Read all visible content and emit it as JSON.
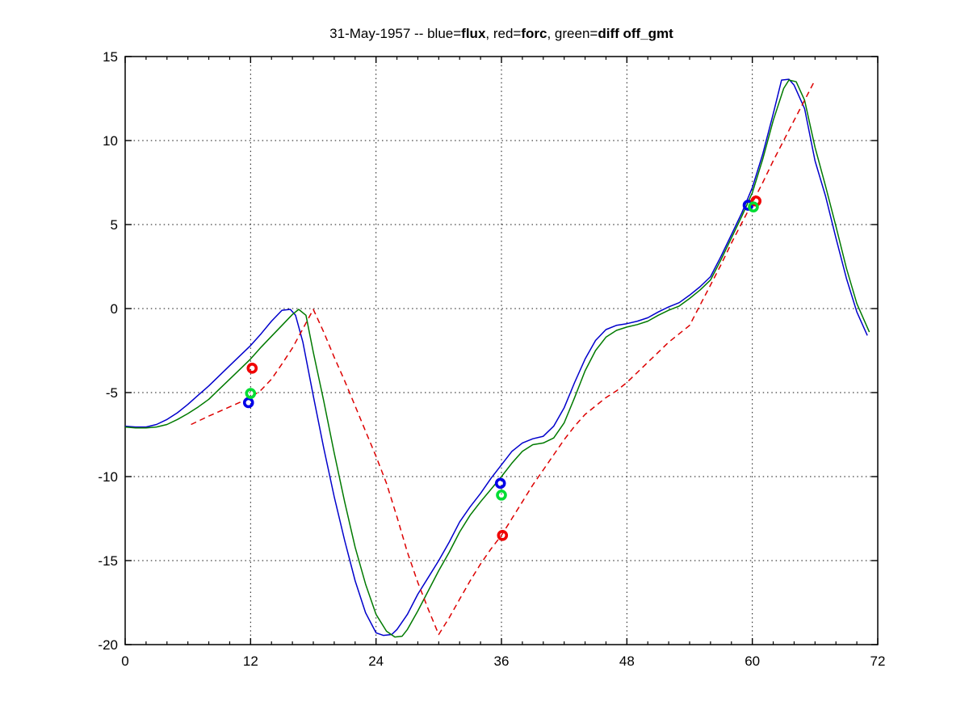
{
  "chart_data": {
    "type": "line",
    "title_segments": [
      {
        "text": "31-May-1957 -- blue=",
        "bold": false
      },
      {
        "text": "flux",
        "bold": true
      },
      {
        "text": ", red=",
        "bold": false
      },
      {
        "text": "forc",
        "bold": true
      },
      {
        "text": ", green=",
        "bold": false
      },
      {
        "text": "diff off_gmt",
        "bold": true
      }
    ],
    "xlim": [
      0,
      72
    ],
    "ylim": [
      -20,
      15
    ],
    "x_major_ticks": [
      0,
      12,
      24,
      36,
      48,
      60,
      72
    ],
    "x_tick_labels": [
      "0",
      "12",
      "24",
      "36",
      "48",
      "60",
      "72"
    ],
    "x_minor_step": 2,
    "y_major_ticks": [
      -20,
      -15,
      -10,
      -5,
      0,
      5,
      10,
      15
    ],
    "y_tick_labels": [
      "-20",
      "-15",
      "-10",
      "-5",
      "0",
      "5",
      "10",
      "15"
    ],
    "grid": "dotted",
    "legend": "in-title",
    "series": [
      {
        "name": "flux",
        "color": "#0000cc",
        "style": "solid",
        "points": [
          [
            0,
            -7.0
          ],
          [
            1,
            -7.05
          ],
          [
            2,
            -7.05
          ],
          [
            3,
            -6.9
          ],
          [
            4,
            -6.6
          ],
          [
            5,
            -6.2
          ],
          [
            6,
            -5.7
          ],
          [
            7,
            -5.15
          ],
          [
            8,
            -4.6
          ],
          [
            9,
            -4.0
          ],
          [
            10,
            -3.4
          ],
          [
            11,
            -2.8
          ],
          [
            12,
            -2.2
          ],
          [
            13,
            -1.5
          ],
          [
            14,
            -0.75
          ],
          [
            15,
            -0.1
          ],
          [
            15.8,
            -0.05
          ],
          [
            16.3,
            -0.4
          ],
          [
            17,
            -2.0
          ],
          [
            18,
            -5.2
          ],
          [
            19,
            -8.3
          ],
          [
            20,
            -11.2
          ],
          [
            21,
            -13.8
          ],
          [
            22,
            -16.2
          ],
          [
            23,
            -18.1
          ],
          [
            24,
            -19.3
          ],
          [
            24.7,
            -19.45
          ],
          [
            25.5,
            -19.4
          ],
          [
            26,
            -19.1
          ],
          [
            27,
            -18.2
          ],
          [
            28,
            -17.0
          ],
          [
            29,
            -16.0
          ],
          [
            30,
            -15.0
          ],
          [
            31,
            -13.9
          ],
          [
            32,
            -12.7
          ],
          [
            33,
            -11.8
          ],
          [
            34,
            -11.0
          ],
          [
            35,
            -10.1
          ],
          [
            36,
            -9.3
          ],
          [
            37,
            -8.5
          ],
          [
            38,
            -8.0
          ],
          [
            39,
            -7.75
          ],
          [
            40,
            -7.6
          ],
          [
            41,
            -7.0
          ],
          [
            42,
            -5.9
          ],
          [
            43,
            -4.4
          ],
          [
            44,
            -3.0
          ],
          [
            45,
            -1.9
          ],
          [
            46,
            -1.25
          ],
          [
            47,
            -1.0
          ],
          [
            48,
            -0.9
          ],
          [
            49,
            -0.75
          ],
          [
            50,
            -0.55
          ],
          [
            51,
            -0.2
          ],
          [
            52,
            0.1
          ],
          [
            53,
            0.35
          ],
          [
            54,
            0.8
          ],
          [
            55,
            1.3
          ],
          [
            56,
            1.9
          ],
          [
            57,
            3.1
          ],
          [
            58,
            4.4
          ],
          [
            59,
            5.7
          ],
          [
            60,
            7.2
          ],
          [
            61,
            9.2
          ],
          [
            62,
            11.6
          ],
          [
            62.8,
            13.6
          ],
          [
            63.5,
            13.65
          ],
          [
            64,
            13.3
          ],
          [
            65,
            11.9
          ],
          [
            66,
            8.8
          ],
          [
            67,
            6.7
          ],
          [
            68,
            4.2
          ],
          [
            69,
            1.8
          ],
          [
            70,
            -0.2
          ],
          [
            71,
            -1.6
          ]
        ]
      },
      {
        "name": "diff",
        "color": "#007a00",
        "style": "solid",
        "points": [
          [
            0,
            -7.05
          ],
          [
            1,
            -7.1
          ],
          [
            2,
            -7.1
          ],
          [
            3,
            -7.05
          ],
          [
            4,
            -6.9
          ],
          [
            5,
            -6.6
          ],
          [
            6,
            -6.25
          ],
          [
            7,
            -5.85
          ],
          [
            8,
            -5.4
          ],
          [
            9,
            -4.8
          ],
          [
            10,
            -4.2
          ],
          [
            11,
            -3.6
          ],
          [
            12,
            -3.0
          ],
          [
            13,
            -2.3
          ],
          [
            14,
            -1.65
          ],
          [
            15,
            -1.0
          ],
          [
            16,
            -0.35
          ],
          [
            16.6,
            -0.05
          ],
          [
            17.3,
            -0.4
          ],
          [
            18,
            -2.6
          ],
          [
            19,
            -5.5
          ],
          [
            20,
            -8.6
          ],
          [
            21,
            -11.5
          ],
          [
            22,
            -14.2
          ],
          [
            23,
            -16.4
          ],
          [
            24,
            -18.2
          ],
          [
            25,
            -19.2
          ],
          [
            25.8,
            -19.55
          ],
          [
            26.5,
            -19.5
          ],
          [
            27,
            -19.1
          ],
          [
            28,
            -18.0
          ],
          [
            29,
            -16.8
          ],
          [
            30,
            -15.6
          ],
          [
            31,
            -14.5
          ],
          [
            32,
            -13.3
          ],
          [
            33,
            -12.3
          ],
          [
            34,
            -11.5
          ],
          [
            35,
            -10.75
          ],
          [
            36,
            -10.0
          ],
          [
            37,
            -9.2
          ],
          [
            38,
            -8.5
          ],
          [
            39,
            -8.1
          ],
          [
            40,
            -8.0
          ],
          [
            41,
            -7.7
          ],
          [
            42,
            -6.8
          ],
          [
            43,
            -5.3
          ],
          [
            44,
            -3.7
          ],
          [
            45,
            -2.5
          ],
          [
            46,
            -1.7
          ],
          [
            47,
            -1.3
          ],
          [
            48,
            -1.1
          ],
          [
            49,
            -0.95
          ],
          [
            50,
            -0.75
          ],
          [
            51,
            -0.4
          ],
          [
            52,
            -0.1
          ],
          [
            53,
            0.15
          ],
          [
            54,
            0.6
          ],
          [
            55,
            1.1
          ],
          [
            56,
            1.7
          ],
          [
            57,
            2.9
          ],
          [
            58,
            4.2
          ],
          [
            59,
            5.5
          ],
          [
            60,
            6.9
          ],
          [
            61,
            8.9
          ],
          [
            62,
            11.2
          ],
          [
            63,
            13.1
          ],
          [
            63.5,
            13.6
          ],
          [
            64.2,
            13.5
          ],
          [
            65,
            12.4
          ],
          [
            66,
            9.6
          ],
          [
            67,
            7.3
          ],
          [
            68,
            4.9
          ],
          [
            69,
            2.4
          ],
          [
            70,
            0.3
          ],
          [
            71.2,
            -1.4
          ]
        ]
      },
      {
        "name": "forc",
        "color": "#dd0000",
        "style": "dashed",
        "points": [
          [
            6.3,
            -6.9
          ],
          [
            8,
            -6.4
          ],
          [
            10,
            -5.85
          ],
          [
            12,
            -5.3
          ],
          [
            13,
            -4.85
          ],
          [
            14,
            -4.2
          ],
          [
            15,
            -3.3
          ],
          [
            16,
            -2.35
          ],
          [
            17,
            -1.2
          ],
          [
            18,
            -0.05
          ],
          [
            19,
            -1.4
          ],
          [
            20,
            -2.9
          ],
          [
            21,
            -4.3
          ],
          [
            22,
            -5.8
          ],
          [
            23,
            -7.3
          ],
          [
            24,
            -8.8
          ],
          [
            25,
            -10.4
          ],
          [
            26,
            -12.4
          ],
          [
            27,
            -14.5
          ],
          [
            28,
            -16.3
          ],
          [
            29,
            -17.9
          ],
          [
            30,
            -19.4
          ],
          [
            31,
            -18.4
          ],
          [
            32,
            -17.3
          ],
          [
            33,
            -16.2
          ],
          [
            34,
            -15.2
          ],
          [
            35,
            -14.3
          ],
          [
            36,
            -13.5
          ],
          [
            37,
            -12.5
          ],
          [
            38,
            -11.5
          ],
          [
            39,
            -10.5
          ],
          [
            40,
            -9.6
          ],
          [
            41,
            -8.7
          ],
          [
            42,
            -7.8
          ],
          [
            43,
            -7.0
          ],
          [
            44,
            -6.3
          ],
          [
            45,
            -5.8
          ],
          [
            46,
            -5.3
          ],
          [
            47,
            -4.9
          ],
          [
            48,
            -4.4
          ],
          [
            49,
            -3.8
          ],
          [
            50,
            -3.2
          ],
          [
            51,
            -2.6
          ],
          [
            52,
            -2.0
          ],
          [
            53,
            -1.5
          ],
          [
            54,
            -1.0
          ],
          [
            55,
            0.2
          ],
          [
            56,
            1.4
          ],
          [
            57,
            2.6
          ],
          [
            58,
            3.9
          ],
          [
            59,
            5.1
          ],
          [
            60,
            6.3
          ],
          [
            61,
            7.5
          ],
          [
            62,
            8.8
          ],
          [
            63,
            10.0
          ],
          [
            64,
            11.2
          ],
          [
            65,
            12.4
          ],
          [
            66,
            13.6
          ]
        ]
      }
    ],
    "markers": [
      {
        "name": "flux-markers",
        "color": "#0000e8",
        "shape": "open-circle",
        "points": [
          [
            11.8,
            -5.6
          ],
          [
            35.9,
            -10.4
          ],
          [
            59.6,
            6.15
          ]
        ]
      },
      {
        "name": "forc-markers",
        "color": "#f00000",
        "shape": "open-circle",
        "points": [
          [
            12.15,
            -3.55
          ],
          [
            36.1,
            -13.5
          ],
          [
            60.35,
            6.4
          ]
        ]
      },
      {
        "name": "diff-markers",
        "color": "#00dd33",
        "shape": "open-circle",
        "points": [
          [
            12.0,
            -5.05
          ],
          [
            36.0,
            -11.1
          ],
          [
            60.1,
            6.05
          ]
        ]
      }
    ]
  }
}
